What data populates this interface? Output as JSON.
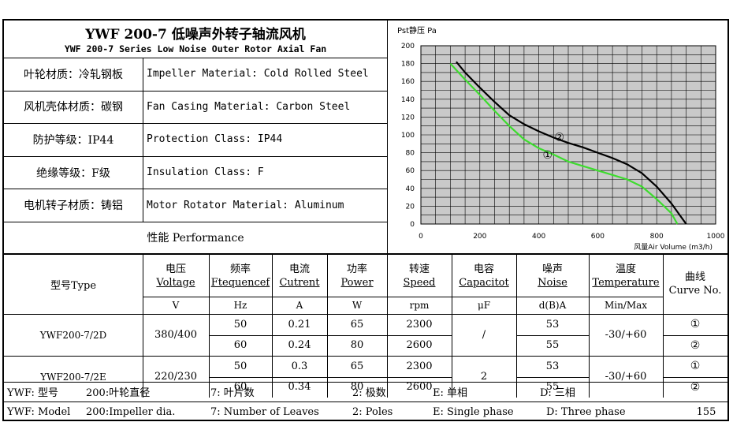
{
  "title": {
    "cn": "YWF 200-7 低噪声外转子轴流风机",
    "en": "YWF 200-7 Series Low Noise Outer Rotor Axial Fan"
  },
  "specs": [
    {
      "cn": "叶轮材质：冷轧钢板",
      "en": "Impeller Material: Cold Rolled Steel"
    },
    {
      "cn": "风机壳体材质：碳钢",
      "en": "Fan Casing Material: Carbon Steel"
    },
    {
      "cn": "防护等级：IP44",
      "en": "Protection Class: IP44"
    },
    {
      "cn": "绝缘等级：F级",
      "en": "Insulation Class: F"
    },
    {
      "cn": "电机转子材质：铸铝",
      "en": "Motor Rotator Material: Aluminum"
    }
  ],
  "performance_label": "性能  Performance",
  "table": {
    "headers": [
      {
        "cn": "型号Type",
        "en": "",
        "unit": ""
      },
      {
        "cn": "电压",
        "en": "Voltage",
        "unit": "V"
      },
      {
        "cn": "频率",
        "en": "Ftequencef",
        "unit": "Hz"
      },
      {
        "cn": "电流",
        "en": "Cutrent",
        "unit": "A"
      },
      {
        "cn": "功率",
        "en": "Power",
        "unit": "W"
      },
      {
        "cn": "转速",
        "en": "Speed",
        "unit": "rpm"
      },
      {
        "cn": "电容",
        "en": "Capacitot",
        "unit": "μF"
      },
      {
        "cn": "噪声",
        "en": "Noise",
        "unit": "d(B)A"
      },
      {
        "cn": "温度",
        "en": "Temperature",
        "unit": "Min/Max"
      },
      {
        "cn": "曲线",
        "en": "Curve No.",
        "unit": ""
      }
    ],
    "models": [
      {
        "type": "YWF200-7/2D",
        "voltage": "380/400",
        "capacitor": "/",
        "temperature": "-30/+60",
        "rows": [
          {
            "freq": "50",
            "current": "0.21",
            "power": "65",
            "speed": "2300",
            "noise": "53",
            "curve": "①"
          },
          {
            "freq": "60",
            "current": "0.24",
            "power": "80",
            "speed": "2600",
            "noise": "55",
            "curve": "②"
          }
        ]
      },
      {
        "type": "YWF200-7/2E",
        "voltage": "220/230",
        "capacitor": "2",
        "temperature": "-30/+60",
        "rows": [
          {
            "freq": "50",
            "current": "0.3",
            "power": "65",
            "speed": "2300",
            "noise": "53",
            "curve": "①"
          },
          {
            "freq": "60",
            "current": "0.34",
            "power": "80",
            "speed": "2600",
            "noise": "55",
            "curve": "②"
          }
        ]
      }
    ]
  },
  "legend_cn": {
    "model": "YWF: 型号",
    "dia": "200:叶轮直径",
    "leaves": "7: 叶片数",
    "poles": "2: 极数",
    "single": "E: 单相",
    "three": "D: 三相"
  },
  "legend_en": {
    "model": "YWF: Model",
    "dia": "200:Impeller dia.",
    "leaves": "7: Number of Leaves",
    "poles": "2: Poles",
    "single": "E: Single phase",
    "three": "D: Three phase",
    "page": "155"
  },
  "chart_data": {
    "type": "line",
    "ylabel": "Pst静压 Pa",
    "xlabel": "风量Air Volume (m3/h)",
    "xlim": [
      0,
      1000
    ],
    "ylim": [
      0,
      200
    ],
    "x_ticks": [
      "0",
      "200",
      "400",
      "600",
      "800",
      "1000"
    ],
    "y_ticks": [
      "0",
      "20",
      "40",
      "60",
      "80",
      "100",
      "120",
      "140",
      "160",
      "180",
      "200"
    ],
    "grid": true,
    "series": [
      {
        "name": "①",
        "color": "#3ddc2e",
        "points": [
          [
            100,
            180
          ],
          [
            150,
            162
          ],
          [
            200,
            145
          ],
          [
            250,
            127
          ],
          [
            300,
            110
          ],
          [
            350,
            95
          ],
          [
            400,
            85
          ],
          [
            450,
            78
          ],
          [
            500,
            70
          ],
          [
            550,
            65
          ],
          [
            600,
            60
          ],
          [
            650,
            55
          ],
          [
            700,
            50
          ],
          [
            750,
            42
          ],
          [
            800,
            28
          ],
          [
            850,
            12
          ],
          [
            870,
            0
          ]
        ]
      },
      {
        "name": "②",
        "color": "#000000",
        "points": [
          [
            120,
            182
          ],
          [
            150,
            170
          ],
          [
            200,
            153
          ],
          [
            250,
            137
          ],
          [
            300,
            122
          ],
          [
            350,
            112
          ],
          [
            400,
            104
          ],
          [
            450,
            97
          ],
          [
            500,
            91
          ],
          [
            550,
            86
          ],
          [
            600,
            80
          ],
          [
            650,
            74
          ],
          [
            700,
            67
          ],
          [
            750,
            57
          ],
          [
            800,
            42
          ],
          [
            850,
            23
          ],
          [
            900,
            0
          ]
        ]
      }
    ]
  }
}
